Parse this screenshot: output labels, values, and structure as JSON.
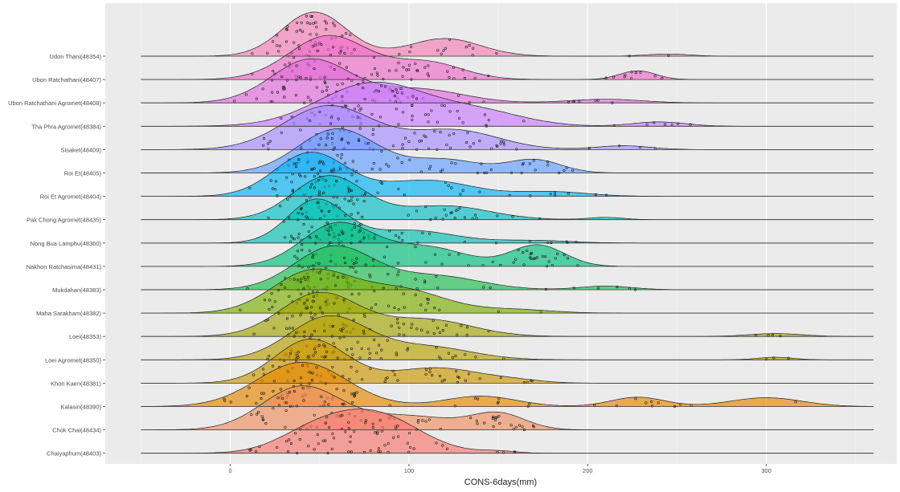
{
  "chart_data": {
    "type": "ridgeline",
    "xlabel": "CONS-6days(mm)",
    "ylabel": "",
    "xlim": [
      -50,
      360
    ],
    "xticks": [
      0,
      100,
      200,
      300
    ],
    "grid": true,
    "background": "#ebebeb",
    "categories": [
      "Udon Thani(48354)",
      "Ubon Ratchathani(48407)",
      "Ubon Ratchathani Agromet(48408)",
      "Tha Phra Agromet(48384)",
      "Sisaket(48409)",
      "Roi Et(48405)",
      "Roi Et Agromet(48404)",
      "Pak Chong Agromet(48435)",
      "Nong Bua Lamphu(48360)",
      "Nakhon Ratchasima(48431)",
      "Mukdahan(48383)",
      "Maha Sarakham(48382)",
      "Loei(48353)",
      "Loei Agromet(48350)",
      "Khon Kaen(48381)",
      "Kalasin(48390)",
      "Chok Chai(48434)",
      "Chaiyaphum(48403)"
    ],
    "colors": [
      "#f57eb6",
      "#f06ac9",
      "#e26adb",
      "#c77cff",
      "#a58aff",
      "#619cff",
      "#00b2f3",
      "#00bfc4",
      "#00c0af",
      "#00bf7d",
      "#1cbd4e",
      "#7cae00",
      "#a3a500",
      "#b79f00",
      "#cd9600",
      "#e58700",
      "#f08f60",
      "#f8766d"
    ],
    "series": [
      {
        "peaks": [
          [
            47,
            18,
            1.0
          ],
          [
            120,
            20,
            0.4
          ],
          [
            245,
            12,
            0.05
          ]
        ]
      },
      {
        "peaks": [
          [
            55,
            22,
            0.9
          ],
          [
            110,
            20,
            0.35
          ],
          [
            228,
            10,
            0.18
          ]
        ]
      },
      {
        "peaks": [
          [
            45,
            22,
            0.95
          ],
          [
            105,
            25,
            0.3
          ],
          [
            210,
            20,
            0.08
          ]
        ]
      },
      {
        "peaks": [
          [
            80,
            30,
            0.8
          ],
          [
            140,
            25,
            0.25
          ],
          [
            240,
            15,
            0.08
          ]
        ]
      },
      {
        "peaks": [
          [
            55,
            25,
            0.9
          ],
          [
            125,
            25,
            0.4
          ],
          [
            220,
            15,
            0.08
          ]
        ]
      },
      {
        "peaks": [
          [
            60,
            22,
            1.0
          ],
          [
            120,
            20,
            0.3
          ],
          [
            170,
            15,
            0.3
          ]
        ]
      },
      {
        "peaks": [
          [
            45,
            20,
            0.95
          ],
          [
            110,
            25,
            0.35
          ],
          [
            180,
            20,
            0.1
          ]
        ]
      },
      {
        "peaks": [
          [
            55,
            20,
            0.95
          ],
          [
            120,
            25,
            0.3
          ],
          [
            210,
            10,
            0.05
          ]
        ]
      },
      {
        "peaks": [
          [
            48,
            16,
            1.0
          ],
          [
            100,
            25,
            0.3
          ],
          [
            170,
            20,
            0.06
          ]
        ]
      },
      {
        "peaks": [
          [
            60,
            20,
            0.9
          ],
          [
            110,
            22,
            0.4
          ],
          [
            172,
            15,
            0.45
          ]
        ]
      },
      {
        "peaks": [
          [
            58,
            22,
            0.95
          ],
          [
            115,
            25,
            0.3
          ],
          [
            210,
            15,
            0.08
          ]
        ]
      },
      {
        "peaks": [
          [
            45,
            22,
            0.95
          ],
          [
            95,
            25,
            0.55
          ],
          [
            160,
            20,
            0.08
          ]
        ]
      },
      {
        "peaks": [
          [
            50,
            22,
            0.9
          ],
          [
            110,
            25,
            0.35
          ],
          [
            305,
            15,
            0.06
          ]
        ]
      },
      {
        "peaks": [
          [
            55,
            22,
            1.0
          ],
          [
            110,
            25,
            0.3
          ],
          [
            305,
            10,
            0.06
          ]
        ]
      },
      {
        "peaks": [
          [
            45,
            20,
            1.0
          ],
          [
            115,
            25,
            0.35
          ],
          [
            160,
            15,
            0.05
          ]
        ]
      },
      {
        "peaks": [
          [
            40,
            25,
            0.85
          ],
          [
            140,
            20,
            0.2
          ],
          [
            228,
            15,
            0.18
          ],
          [
            300,
            20,
            0.17
          ]
        ]
      },
      {
        "peaks": [
          [
            40,
            22,
            0.95
          ],
          [
            100,
            25,
            0.3
          ],
          [
            150,
            15,
            0.35
          ]
        ]
      },
      {
        "peaks": [
          [
            80,
            25,
            0.95
          ],
          [
            45,
            20,
            0.4
          ],
          [
            150,
            10,
            0.05
          ]
        ]
      }
    ]
  }
}
